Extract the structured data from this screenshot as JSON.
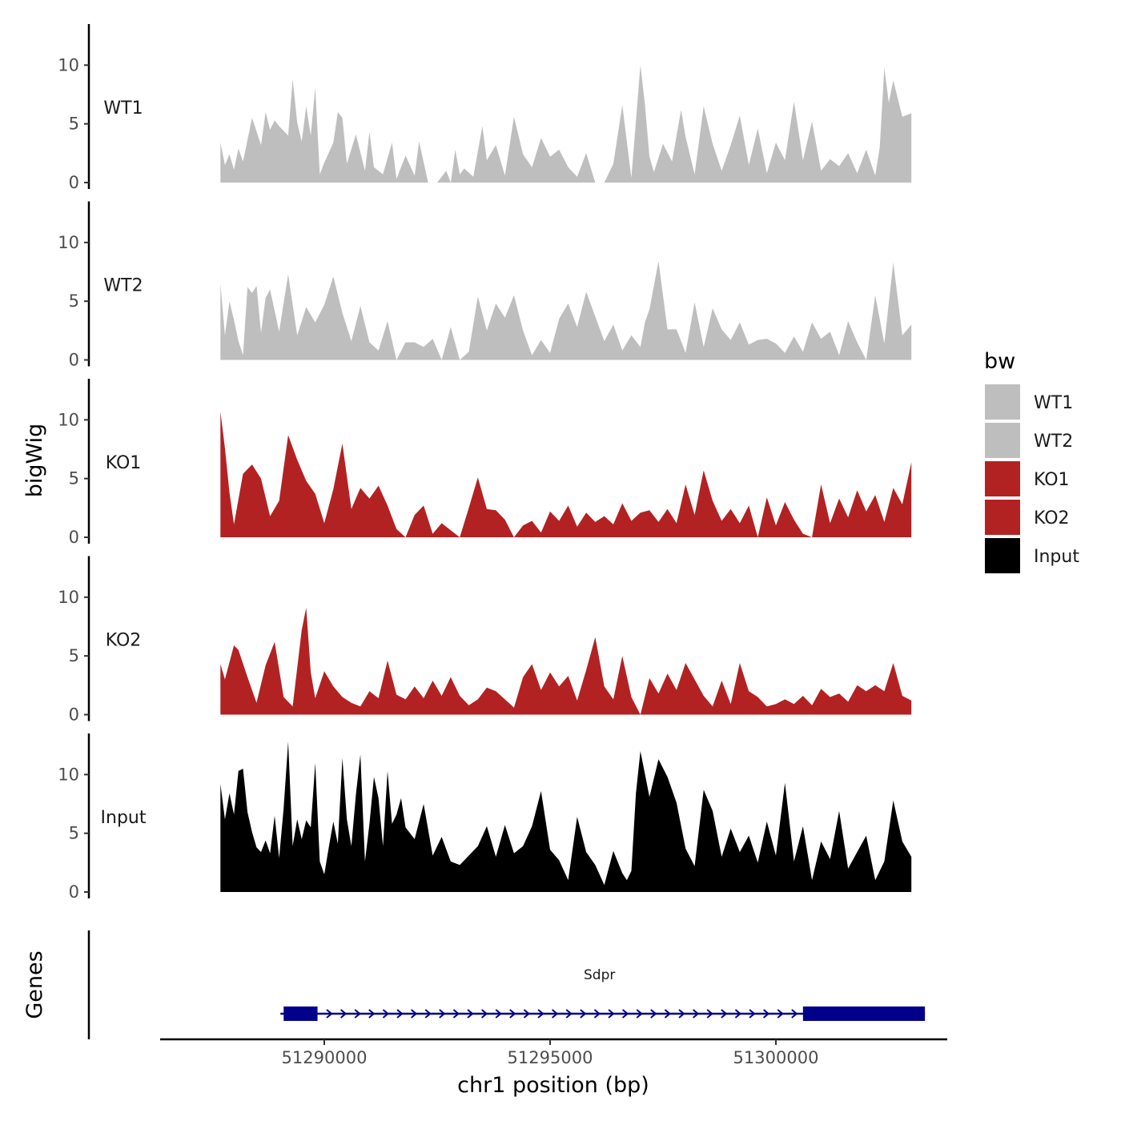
{
  "chart_data": {
    "type": "area",
    "genomic_range": [
      51287600,
      51303300
    ],
    "ylim": [
      0,
      13.5
    ],
    "yticks": [
      0,
      5,
      10
    ],
    "ylabel": "bigWig",
    "genes_label": "Genes",
    "xlabel": "chr1 position (bp)",
    "xticks": [
      51290000,
      51295000,
      51300000
    ],
    "xtick_labels": [
      "51290000",
      "51295000",
      "51300000"
    ],
    "legend": {
      "title": "bw",
      "entries": [
        {
          "label": "WT1",
          "color": "#bebebe"
        },
        {
          "label": "WT2",
          "color": "#bebebe"
        },
        {
          "label": "KO1",
          "color": "#b22222"
        },
        {
          "label": "KO2",
          "color": "#b22222"
        },
        {
          "label": "Input",
          "color": "#000000"
        }
      ]
    },
    "series": [
      {
        "name": "WT1",
        "color": "#bebebe",
        "x": [
          51287700,
          51287800,
          51287900,
          51288000,
          51288100,
          51288200,
          51288400,
          51288600,
          51288700,
          51288800,
          51288900,
          51289000,
          51289200,
          51289300,
          51289400,
          51289500,
          51289600,
          51289700,
          51289800,
          51289900,
          51290000,
          51290200,
          51290300,
          51290400,
          51290500,
          51290700,
          51290900,
          51291000,
          51291100,
          51291300,
          51291500,
          51291600,
          51291800,
          51292000,
          51292100,
          51292300,
          51292500,
          51292700,
          51292800,
          51292900,
          51293000,
          51293100,
          51293300,
          51293500,
          51293600,
          51293800,
          51294000,
          51294200,
          51294400,
          51294600,
          51294800,
          51295000,
          51295200,
          51295400,
          51295600,
          51295800,
          51296000,
          51296200,
          51296400,
          51296600,
          51296800,
          51297000,
          51297100,
          51297200,
          51297300,
          51297500,
          51297700,
          51297900,
          51298000,
          51298200,
          51298400,
          51298600,
          51298800,
          51299000,
          51299200,
          51299400,
          51299600,
          51299800,
          51300000,
          51300200,
          51300400,
          51300600,
          51300800,
          51301000,
          51301200,
          51301400,
          51301600,
          51301800,
          51302000,
          51302200,
          51302300,
          51302400,
          51302500,
          51302600,
          51302800,
          51303000
        ],
        "values": [
          3.4,
          1.5,
          2.4,
          1.1,
          2.9,
          1.8,
          5.5,
          3.2,
          6.0,
          4.5,
          5.3,
          4.8,
          4.0,
          8.8,
          5.1,
          3.5,
          6.5,
          4.0,
          8.1,
          0.7,
          1.7,
          3.4,
          6.0,
          5.5,
          1.6,
          4.1,
          1.0,
          4.3,
          1.3,
          0.7,
          3.4,
          0.3,
          2.3,
          0.6,
          3.5,
          0.0,
          0.0,
          1.0,
          0.0,
          2.8,
          0.7,
          1.2,
          0.5,
          4.8,
          1.9,
          3.2,
          0.6,
          5.6,
          2.4,
          1.3,
          3.8,
          2.2,
          2.8,
          1.3,
          0.5,
          2.5,
          0.0,
          0.0,
          1.6,
          6.6,
          0.4,
          10.0,
          6.7,
          2.2,
          0.9,
          3.3,
          1.8,
          6.2,
          3.9,
          0.7,
          6.5,
          3.3,
          1.0,
          3.2,
          5.7,
          1.5,
          4.6,
          0.8,
          3.4,
          1.9,
          6.9,
          1.9,
          5.2,
          1.0,
          2.0,
          1.4,
          2.5,
          0.8,
          2.8,
          0.6,
          3.0,
          9.8,
          6.8,
          8.7,
          5.6,
          5.9
        ]
      },
      {
        "name": "WT2",
        "color": "#bebebe",
        "x": [
          51287700,
          51287800,
          51287900,
          51288000,
          51288100,
          51288200,
          51288300,
          51288400,
          51288500,
          51288600,
          51288700,
          51288800,
          51289000,
          51289200,
          51289400,
          51289600,
          51289800,
          51290000,
          51290200,
          51290400,
          51290600,
          51290800,
          51291000,
          51291200,
          51291400,
          51291600,
          51291800,
          51292000,
          51292200,
          51292400,
          51292600,
          51292800,
          51293000,
          51293200,
          51293400,
          51293600,
          51293800,
          51294000,
          51294200,
          51294400,
          51294600,
          51294800,
          51295000,
          51295200,
          51295400,
          51295600,
          51295800,
          51296000,
          51296200,
          51296400,
          51296600,
          51296800,
          51297000,
          51297100,
          51297200,
          51297400,
          51297600,
          51297800,
          51298000,
          51298200,
          51298400,
          51298600,
          51298800,
          51299000,
          51299200,
          51299400,
          51299600,
          51299800,
          51300000,
          51300200,
          51300400,
          51300600,
          51300800,
          51301000,
          51301200,
          51301400,
          51301600,
          51301800,
          51302000,
          51302200,
          51302400,
          51302600,
          51302800,
          51303000
        ],
        "values": [
          6.5,
          2.1,
          5.0,
          3.4,
          1.6,
          0.4,
          6.2,
          5.7,
          6.3,
          2.3,
          5.3,
          6.0,
          2.4,
          7.3,
          2.1,
          4.5,
          3.2,
          4.7,
          7.1,
          4.0,
          1.6,
          4.6,
          1.5,
          0.8,
          3.3,
          0.0,
          1.5,
          1.5,
          1.1,
          1.8,
          0.0,
          2.8,
          0.0,
          0.7,
          5.4,
          2.5,
          4.8,
          3.6,
          5.5,
          2.5,
          0.4,
          1.7,
          0.6,
          3.5,
          4.8,
          2.8,
          5.8,
          3.7,
          1.6,
          3.0,
          0.8,
          2.1,
          1.1,
          3.2,
          4.3,
          8.4,
          2.6,
          2.6,
          0.6,
          4.9,
          1.1,
          4.4,
          2.6,
          1.7,
          3.2,
          1.3,
          1.7,
          1.8,
          1.4,
          0.6,
          2.0,
          0.7,
          3.2,
          1.8,
          2.4,
          0.4,
          3.3,
          1.5,
          0.0,
          5.5,
          1.4,
          8.3,
          2.1,
          3.0
        ]
      },
      {
        "name": "KO1",
        "color": "#b22222",
        "x": [
          51287700,
          51287800,
          51287900,
          51288000,
          51288200,
          51288400,
          51288600,
          51288800,
          51289000,
          51289200,
          51289400,
          51289600,
          51289800,
          51290000,
          51290200,
          51290400,
          51290600,
          51290800,
          51291000,
          51291200,
          51291400,
          51291600,
          51291800,
          51292000,
          51292200,
          51292400,
          51292600,
          51292800,
          51293000,
          51293200,
          51293400,
          51293600,
          51293800,
          51294000,
          51294200,
          51294400,
          51294600,
          51294800,
          51295000,
          51295200,
          51295400,
          51295600,
          51295800,
          51296000,
          51296200,
          51296400,
          51296600,
          51296800,
          51297000,
          51297200,
          51297400,
          51297600,
          51297800,
          51298000,
          51298200,
          51298400,
          51298600,
          51298800,
          51299000,
          51299200,
          51299400,
          51299600,
          51299800,
          51300000,
          51300200,
          51300400,
          51300600,
          51300800,
          51301000,
          51301200,
          51301400,
          51301600,
          51301800,
          51302000,
          51302200,
          51302400,
          51302600,
          51302800,
          51303000
        ],
        "values": [
          10.7,
          7.6,
          3.8,
          1.1,
          5.4,
          6.2,
          5.0,
          1.8,
          3.1,
          8.7,
          6.6,
          4.8,
          3.7,
          1.2,
          4.1,
          8.0,
          2.4,
          4.2,
          3.3,
          4.4,
          2.7,
          0.7,
          0.0,
          1.9,
          2.7,
          0.3,
          1.2,
          0.6,
          0.0,
          2.5,
          5.1,
          2.4,
          2.3,
          1.5,
          0.0,
          1.0,
          1.4,
          0.4,
          2.2,
          1.4,
          2.7,
          0.9,
          2.1,
          1.3,
          1.8,
          1.1,
          2.9,
          1.4,
          2.1,
          2.3,
          1.3,
          2.4,
          1.2,
          4.5,
          1.9,
          5.7,
          3.1,
          1.4,
          2.4,
          1.2,
          2.7,
          0.0,
          3.4,
          1.0,
          3.0,
          1.5,
          0.3,
          0.0,
          4.5,
          1.2,
          3.3,
          1.7,
          4.0,
          2.2,
          3.6,
          1.3,
          4.2,
          2.8,
          6.4
        ]
      },
      {
        "name": "KO2",
        "color": "#b22222",
        "x": [
          51287700,
          51287800,
          51288000,
          51288100,
          51288300,
          51288500,
          51288700,
          51288900,
          51289100,
          51289300,
          51289500,
          51289600,
          51289700,
          51289800,
          51290000,
          51290200,
          51290400,
          51290600,
          51290800,
          51291000,
          51291200,
          51291400,
          51291600,
          51291800,
          51292000,
          51292200,
          51292400,
          51292600,
          51292800,
          51293000,
          51293200,
          51293400,
          51293600,
          51293800,
          51294000,
          51294200,
          51294400,
          51294600,
          51294800,
          51295000,
          51295200,
          51295400,
          51295600,
          51295800,
          51296000,
          51296200,
          51296400,
          51296600,
          51296800,
          51297000,
          51297200,
          51297400,
          51297600,
          51297800,
          51298000,
          51298200,
          51298400,
          51298600,
          51298800,
          51299000,
          51299200,
          51299400,
          51299600,
          51299800,
          51300000,
          51300200,
          51300400,
          51300600,
          51300800,
          51301000,
          51301200,
          51301400,
          51301600,
          51301800,
          51302000,
          51302200,
          51302400,
          51302600,
          51302800,
          51303000
        ],
        "values": [
          4.3,
          3.0,
          5.9,
          5.5,
          3.2,
          1.0,
          4.2,
          6.2,
          1.5,
          0.7,
          7.2,
          9.1,
          3.6,
          1.4,
          3.7,
          2.4,
          1.5,
          1.0,
          0.7,
          2.0,
          1.4,
          4.6,
          1.7,
          1.3,
          2.4,
          1.4,
          2.9,
          1.6,
          3.2,
          1.6,
          0.8,
          1.3,
          2.3,
          2.0,
          1.3,
          0.6,
          3.2,
          4.3,
          2.1,
          3.6,
          2.4,
          3.3,
          1.2,
          3.8,
          6.6,
          2.4,
          1.3,
          5.0,
          1.5,
          0.0,
          3.1,
          1.8,
          3.5,
          2.1,
          4.4,
          3.0,
          1.6,
          0.7,
          2.9,
          0.9,
          4.4,
          2.0,
          1.5,
          0.7,
          0.9,
          1.3,
          0.9,
          1.6,
          0.8,
          2.2,
          1.5,
          1.8,
          1.1,
          2.5,
          2.0,
          2.5,
          2.0,
          4.4,
          1.6,
          1.2
        ]
      },
      {
        "name": "Input",
        "color": "#000000",
        "x": [
          51287700,
          51287800,
          51287900,
          51288000,
          51288100,
          51288200,
          51288300,
          51288400,
          51288500,
          51288600,
          51288700,
          51288800,
          51288900,
          51289000,
          51289100,
          51289200,
          51289300,
          51289400,
          51289500,
          51289600,
          51289700,
          51289800,
          51289900,
          51290000,
          51290100,
          51290200,
          51290300,
          51290400,
          51290500,
          51290600,
          51290700,
          51290800,
          51290900,
          51291000,
          51291100,
          51291200,
          51291300,
          51291400,
          51291500,
          51291600,
          51291700,
          51291800,
          51292000,
          51292200,
          51292400,
          51292600,
          51292800,
          51293000,
          51293200,
          51293400,
          51293600,
          51293800,
          51294000,
          51294200,
          51294400,
          51294600,
          51294800,
          51295000,
          51295200,
          51295400,
          51295600,
          51295800,
          51296000,
          51296200,
          51296400,
          51296600,
          51296700,
          51296800,
          51296900,
          51297000,
          51297200,
          51297400,
          51297600,
          51297800,
          51298000,
          51298200,
          51298400,
          51298600,
          51298800,
          51299000,
          51299200,
          51299400,
          51299600,
          51299800,
          51300000,
          51300200,
          51300400,
          51300600,
          51300800,
          51301000,
          51301200,
          51301400,
          51301600,
          51301800,
          51302000,
          51302200,
          51302400,
          51302600,
          51302800,
          51303000
        ],
        "values": [
          9.2,
          6.2,
          8.4,
          6.6,
          10.3,
          10.5,
          6.8,
          5.1,
          3.8,
          3.4,
          4.4,
          3.3,
          6.5,
          2.9,
          7.1,
          12.8,
          3.9,
          6.2,
          4.5,
          6.1,
          5.5,
          11.0,
          2.6,
          1.5,
          3.8,
          6.0,
          4.1,
          11.4,
          6.2,
          3.9,
          8.3,
          11.7,
          2.6,
          5.8,
          9.8,
          8.0,
          3.9,
          10.3,
          5.8,
          6.6,
          8.0,
          5.5,
          4.5,
          7.5,
          3.1,
          4.7,
          2.6,
          2.3,
          3.1,
          3.9,
          5.6,
          3.0,
          5.7,
          3.3,
          3.9,
          5.6,
          8.6,
          3.6,
          2.7,
          1.0,
          6.4,
          3.4,
          2.3,
          0.6,
          3.5,
          1.6,
          1.0,
          1.8,
          8.4,
          12.0,
          8.1,
          11.3,
          9.8,
          7.6,
          3.7,
          2.2,
          8.7,
          6.9,
          3.0,
          5.4,
          3.4,
          4.8,
          2.5,
          6.0,
          3.1,
          9.3,
          2.6,
          5.6,
          1.0,
          4.3,
          2.8,
          6.9,
          2.0,
          3.4,
          4.8,
          1.0,
          2.6,
          7.8,
          4.3,
          3.0
        ]
      }
    ],
    "genes": [
      {
        "name": "Sdpr",
        "start": 51289100,
        "end": 51303300,
        "strand": "+",
        "exons": [
          [
            51289100,
            51289850
          ],
          [
            51300600,
            51303300
          ]
        ]
      }
    ]
  }
}
